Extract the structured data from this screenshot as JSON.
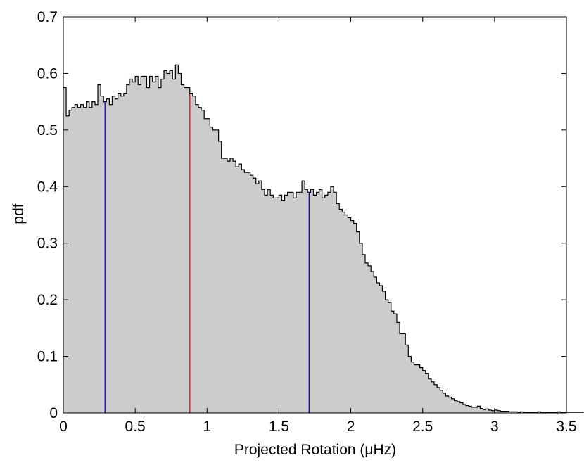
{
  "chart_data": {
    "type": "histogram",
    "title": "",
    "xlabel": "Projected Rotation (μHz)",
    "ylabel": "pdf",
    "xlim": [
      0,
      3.5
    ],
    "ylim": [
      0,
      0.7
    ],
    "xticks": [
      0,
      0.5,
      1,
      1.5,
      2,
      2.5,
      3,
      3.5
    ],
    "xtick_labels": [
      "0",
      "0.5",
      "1",
      "1.5",
      "2",
      "2.5",
      "3",
      "3.5"
    ],
    "yticks": [
      0,
      0.1,
      0.2,
      0.3,
      0.4,
      0.5,
      0.6,
      0.7
    ],
    "ytick_labels": [
      "0",
      "0.1",
      "0.2",
      "0.3",
      "0.4",
      "0.5",
      "0.6",
      "0.7"
    ],
    "grid": false,
    "bin_width": 0.02,
    "bin_start": 0,
    "fill_color": "#cccccc",
    "edge_color": "#000000",
    "values": [
      0.575,
      0.525,
      0.535,
      0.54,
      0.545,
      0.54,
      0.545,
      0.54,
      0.55,
      0.54,
      0.55,
      0.545,
      0.58,
      0.56,
      0.55,
      0.555,
      0.545,
      0.56,
      0.555,
      0.565,
      0.56,
      0.565,
      0.58,
      0.59,
      0.585,
      0.595,
      0.58,
      0.595,
      0.595,
      0.575,
      0.595,
      0.585,
      0.595,
      0.575,
      0.59,
      0.605,
      0.6,
      0.605,
      0.59,
      0.615,
      0.6,
      0.58,
      0.575,
      0.575,
      0.565,
      0.56,
      0.545,
      0.54,
      0.535,
      0.52,
      0.52,
      0.505,
      0.5,
      0.5,
      0.48,
      0.45,
      0.45,
      0.445,
      0.45,
      0.445,
      0.435,
      0.44,
      0.43,
      0.425,
      0.425,
      0.42,
      0.415,
      0.405,
      0.41,
      0.395,
      0.385,
      0.395,
      0.385,
      0.38,
      0.38,
      0.385,
      0.375,
      0.385,
      0.39,
      0.39,
      0.38,
      0.39,
      0.39,
      0.41,
      0.395,
      0.39,
      0.395,
      0.385,
      0.39,
      0.395,
      0.38,
      0.385,
      0.39,
      0.4,
      0.39,
      0.37,
      0.36,
      0.355,
      0.35,
      0.345,
      0.34,
      0.335,
      0.32,
      0.3,
      0.28,
      0.265,
      0.26,
      0.25,
      0.24,
      0.23,
      0.225,
      0.215,
      0.2,
      0.195,
      0.18,
      0.175,
      0.16,
      0.14,
      0.14,
      0.12,
      0.1,
      0.09,
      0.085,
      0.085,
      0.08,
      0.075,
      0.07,
      0.06,
      0.055,
      0.05,
      0.045,
      0.04,
      0.035,
      0.03,
      0.028,
      0.025,
      0.022,
      0.02,
      0.018,
      0.015,
      0.013,
      0.012,
      0.01,
      0.01,
      0.012,
      0.008,
      0.006,
      0.007,
      0.005,
      0.004,
      0.005,
      0.004,
      0.003,
      0.003,
      0.003,
      0.002,
      0.002,
      0.002,
      0.001,
      0.002,
      0.001,
      0.001,
      0.001,
      0.001,
      0.001,
      0.002,
      0.001,
      0.001,
      0.001,
      0.001,
      0.001,
      0.001,
      0.002,
      0.001,
      0.001,
      0.001,
      0.001,
      0.001,
      0.001,
      0.001,
      0.001
    ],
    "markers": [
      {
        "x": 0.29,
        "color": "#0000ff"
      },
      {
        "x": 0.88,
        "color": "#ff0000"
      },
      {
        "x": 1.71,
        "color": "#0000ff"
      }
    ]
  }
}
